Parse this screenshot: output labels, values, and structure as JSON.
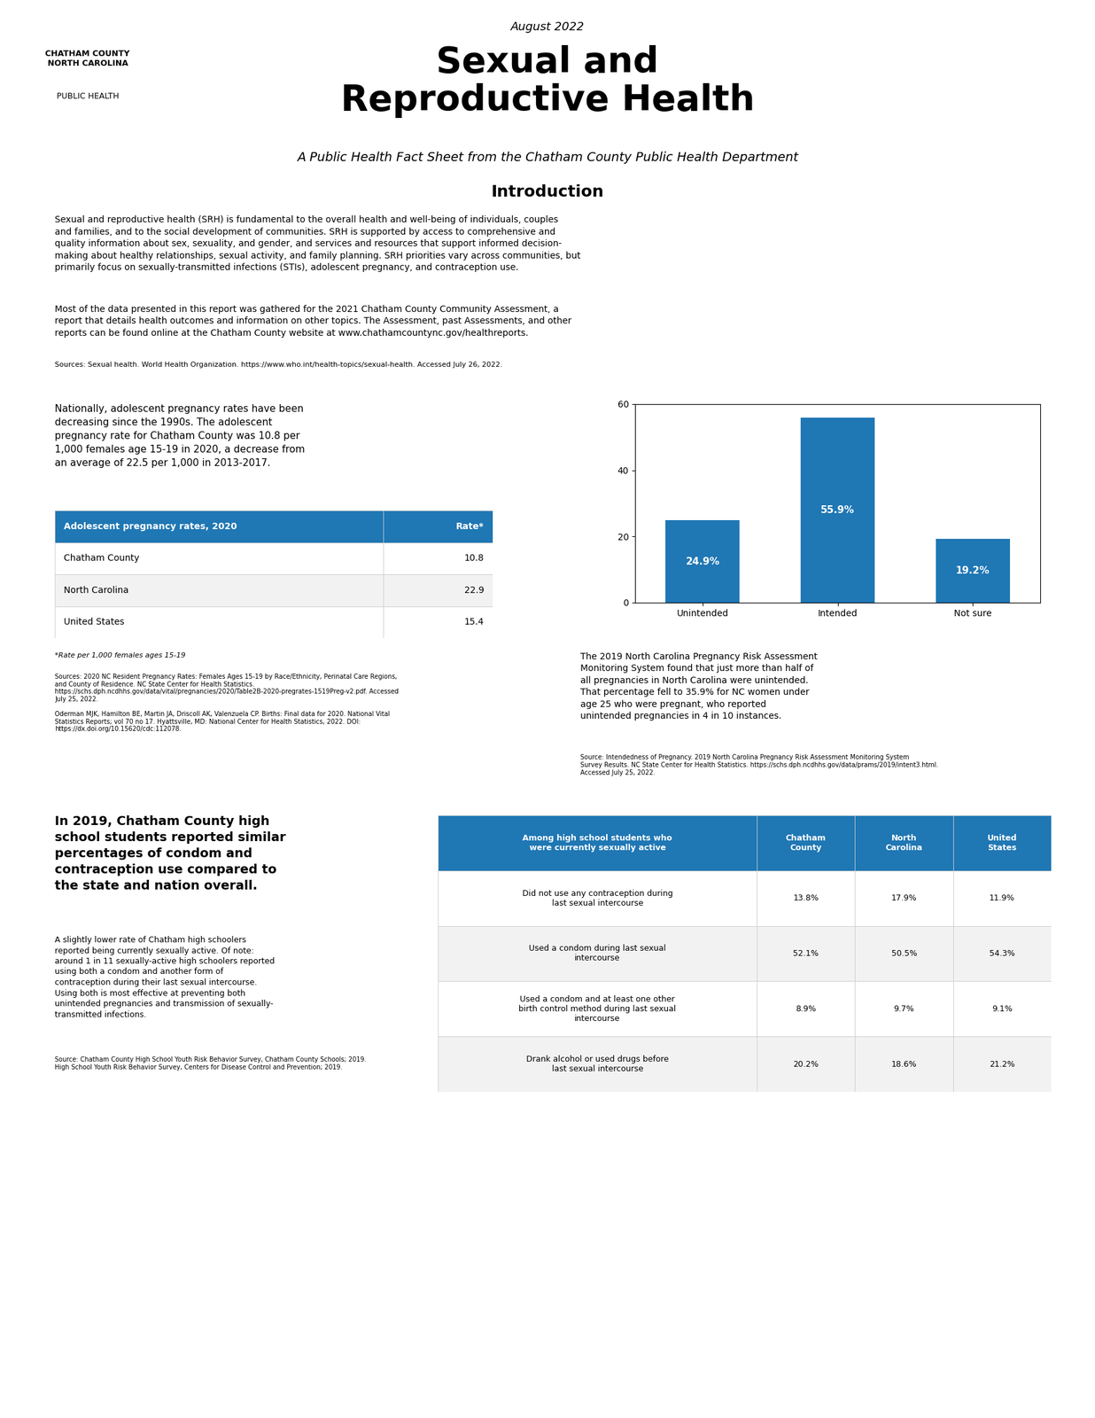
{
  "title": "Sexual and\nReproductive Health",
  "subtitle": "A Public Health Fact Sheet from the Chatham County Public Health Department",
  "annotations": [
    "August 2022",
    "CHATHAM COUNTY\nNORTH CAROLINA",
    "PUBLIC HEALTH",
    "Introduction",
    "Sexual and reproductive health (SRH) is fundamental to the overall health and well-being of individuals, couples\nand families, and to the social development of communities. SRH is supported by access to comprehensive and\nquality information about sex, sexuality, and gender, and services and resources that support informed decision-\nmaking about healthy relationships, sexual activity, and family planning. SRH priorities vary across communities, but\nprimarily focus on sexually-transmitted infections (STIs), adolescent pregnancy, and contraception use.",
    "Most of the data presented in this report was gathered for the 2021 Chatham County Community Assessment, a\nreport that details health outcomes and information on other topics. The Assessment, past Assessments, and other\nreports can be found online at the Chatham County website at www.chathamcountync.gov/healthreports.",
    "Sources: Sexual health. World Health Organization. https://www.who.int/health-topics/sexual-health. Accessed July 26, 2022.",
    "In 2019, Chatham County high\nschool students reported similar\npercentages of condom and\ncontraception use compared to\nthe state and nation overall.",
    "A slightly lower rate of Chatham high schoolers\nreported being currently sexually active. Of note:\naround 1 in 11 sexually-active high schoolers reported\nusing both a condom and another form of\ncontraception during their last sexual intercourse.\nUsing both is most effective at preventing both\nunintended pregnancies and transmission of sexually-\ntransmitted infections.",
    "Source: Chatham County High School Youth Risk Behavior Survey, Chatham County Schools; 2019.\nHigh School Youth Risk Behavior Survey, Centers for Disease Control and Prevention; 2019."
  ],
  "chart_data": [
    {
      "type": "table",
      "title": "Adolescent pregnancy rates, 2020",
      "categories": [
        "Chatham County",
        "North Carolina",
        "United States"
      ],
      "series": [
        {
          "name": "Rate*",
          "values": [
            10.8,
            22.9,
            15.4
          ]
        }
      ],
      "annotations": [
        "Nationally, adolescent pregnancy rates have been\ndecreasing since the 1990s. The adolescent\npregnancy rate for Chatham County was 10.8 per\n1,000 females age 15-19 in 2020, a decrease from\nan average of 22.5 per 1,000 in 2013-2017.",
        "*Rate per 1,000 females ages 15-19",
        "Sources: 2020 NC Resident Pregnancy Rates: Females Ages 15-19 by Race/Ethnicity, Perinatal Care Regions,\nand County of Residence. NC State Center for Health Statistics.\nhttps://schs.dph.ncdhhs.gov/data/vital/pregnancies/2020/Table2B-2020-pregrates-1519Preg-v2.pdf. Accessed\nJuly 25, 2022.\n\nOderman MJK, Hamilton BE, Martin JA, Driscoll AK, Valenzuela CP. Births: Final data for 2020. National Vital\nStatistics Reports; vol 70 no 17. Hyattsville, MD: National Center for Health Statistics, 2022. DOI:\nhttps://dx.doi.org/10.15620/cdc:112078."
      ]
    },
    {
      "type": "bar",
      "categories": [
        "Unintended",
        "Intended",
        "Not sure"
      ],
      "values": [
        24.9,
        55.9,
        19.2
      ],
      "value_labels": [
        "24.9%",
        "55.9%",
        "19.2%"
      ],
      "data_labels": true,
      "ylim": [
        0,
        60
      ],
      "yticks": [
        0,
        20,
        40,
        60
      ],
      "annotations": [
        "The 2019 North Carolina Pregnancy Risk Assessment\nMonitoring System found that just more than half of\nall pregnancies in North Carolina were unintended.\nThat percentage fell to 35.9% for NC women under\nage 25 who were pregnant, who reported\nunintended pregnancies in 4 in 10 instances.",
        "Source: Intendedness of Pregnancy. 2019 North Carolina Pregnancy Risk Assessment Monitoring System\nSurvey Results. NC State Center for Health Statistics. https://schs.dph.ncdhhs.gov/data/prams/2019/intent3.html.\nAccessed July 25, 2022."
      ]
    },
    {
      "type": "table",
      "title": "Among high school students who\nwere currently sexually active",
      "categories": [
        "Did not use any contraception during\nlast sexual intercourse",
        "Used a condom during last sexual\nintercourse",
        "Used a condom and at least one other\nbirth control method during last sexual\nintercourse",
        "Drank alcohol or used drugs before\nlast sexual intercourse"
      ],
      "series": [
        {
          "name": "Chatham\nCounty",
          "values": [
            13.8,
            52.1,
            8.9,
            20.2
          ],
          "value_labels": [
            "13.8%",
            "52.1%",
            "8.9%",
            "20.2%"
          ]
        },
        {
          "name": "North\nCarolina",
          "values": [
            17.9,
            50.5,
            9.7,
            18.6
          ],
          "value_labels": [
            "17.9%",
            "50.5%",
            "9.7%",
            "18.6%"
          ]
        },
        {
          "name": "United\nStates",
          "values": [
            11.9,
            54.3,
            9.1,
            21.2
          ],
          "value_labels": [
            "11.9%",
            "54.3%",
            "9.1%",
            "21.2%"
          ]
        }
      ]
    }
  ]
}
